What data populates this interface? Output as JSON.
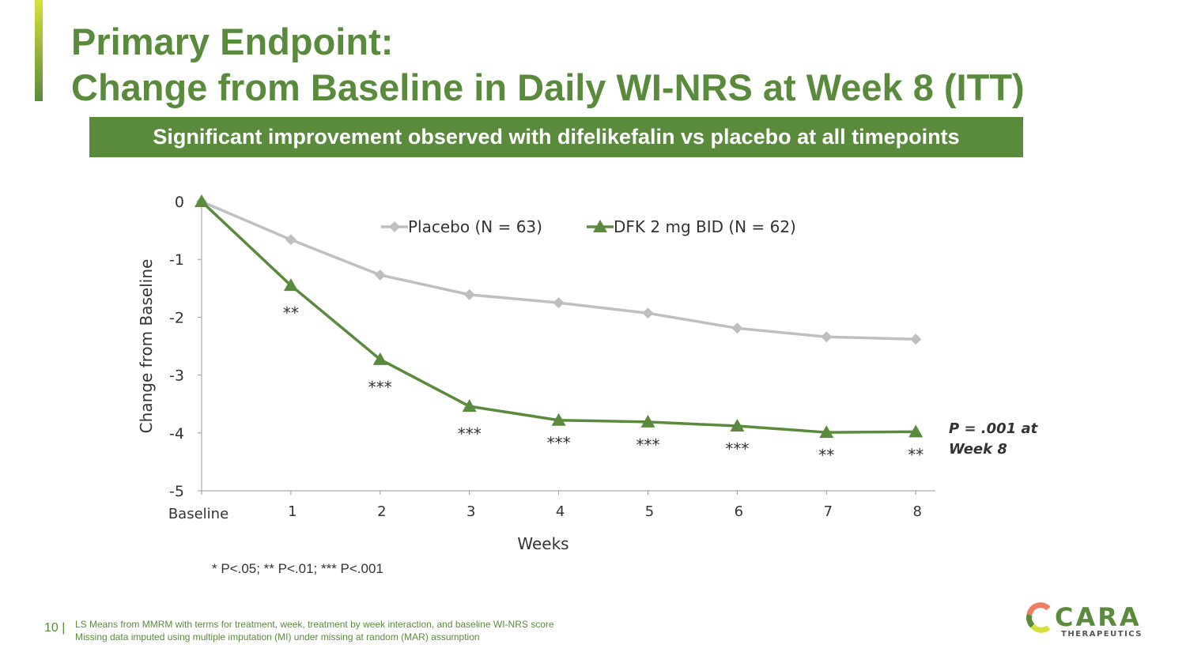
{
  "title_line1": "Primary Endpoint:",
  "title_line2": "Change from Baseline in Daily WI-NRS at Week 8 (ITT)",
  "banner": "Significant improvement observed with difelikefalin vs placebo at all timepoints",
  "p_note_line1": "P = .001 at",
  "p_note_line2": "Week 8",
  "significance_legend": "* P<.05; ** P<.01; *** P<.001",
  "page_number": "10 |",
  "footnote_line1": "LS Means from MMRM with terms for treatment, week, treatment by week interaction, and baseline WI-NRS score",
  "footnote_line2": "Missing data imputed using multiple imputation (MI) under missing at random (MAR) assumption",
  "logo": {
    "name": "CARA",
    "sub": "THERAPEUTICS"
  },
  "colors": {
    "green": "#5a8a3c",
    "placebo": "#bfbfbf"
  },
  "chart_data": {
    "type": "line",
    "xlabel": "Weeks",
    "ylabel": "Change from Baseline",
    "categories": [
      "Baseline",
      "1",
      "2",
      "3",
      "4",
      "5",
      "6",
      "7",
      "8"
    ],
    "ylim": [
      -5,
      0
    ],
    "yticks": [
      "0",
      "-1",
      "-2",
      "-3",
      "-4",
      "-5"
    ],
    "legend_position": "top",
    "series": [
      {
        "name": "Placebo (N = 63)",
        "marker": "diamond",
        "color": "#bfbfbf",
        "values": [
          0,
          -0.66,
          -1.27,
          -1.61,
          -1.75,
          -1.93,
          -2.19,
          -2.34,
          -2.38
        ]
      },
      {
        "name": "DFK 2 mg BID (N = 62)",
        "marker": "triangle",
        "color": "#5a8a3c",
        "values": [
          0,
          -1.45,
          -2.73,
          -3.54,
          -3.78,
          -3.81,
          -3.88,
          -3.99,
          -3.98
        ]
      }
    ],
    "annotations": [
      "",
      "**",
      "***",
      "***",
      "***",
      "***",
      "***",
      "**",
      "**"
    ]
  }
}
